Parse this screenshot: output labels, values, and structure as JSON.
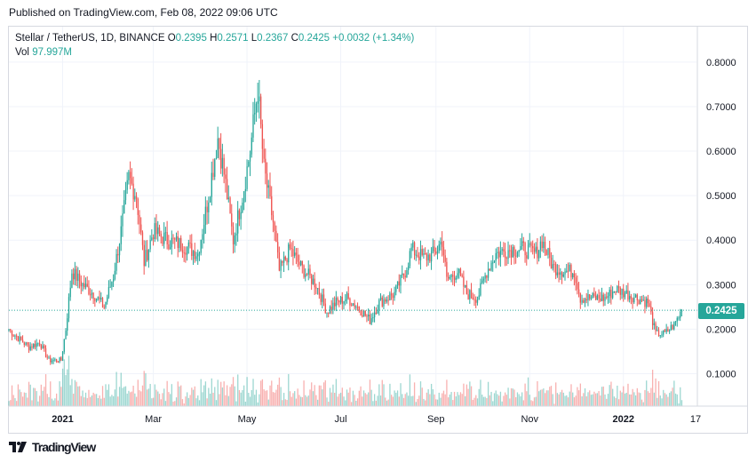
{
  "header": {
    "published": "Published on TradingView.com, Feb 08, 2022 09:06 UTC"
  },
  "legend": {
    "symbol": "Stellar / TetherUS, 1D, BINANCE",
    "o_label": "O",
    "o_value": "0.2395",
    "h_label": "H",
    "h_value": "0.2571",
    "l_label": "L",
    "l_value": "0.2367",
    "c_label": "C",
    "c_value": "0.2425",
    "change": "+0.0032 (+1.34%)",
    "vol_label": "Vol",
    "vol_value": "97.997M"
  },
  "last_price_tag": "0.2425",
  "footer": {
    "brand": "TradingView"
  },
  "colors": {
    "up": "#26a69a",
    "down": "#ef5350",
    "grid": "#f0f3fa",
    "axis_border": "#d6d9e0"
  },
  "chart_data": {
    "type": "candlestick",
    "title": "Stellar / TetherUS, 1D, BINANCE",
    "x_tick_labels": [
      "2021",
      "Mar",
      "May",
      "Jul",
      "Sep",
      "Nov",
      "2022",
      "17"
    ],
    "y_tick_labels": [
      "0.1000",
      "0.2000",
      "0.3000",
      "0.4000",
      "0.5000",
      "0.6000",
      "0.7000",
      "0.8000"
    ],
    "y_ticks": [
      0.1,
      0.2,
      0.3,
      0.4,
      0.5,
      0.6,
      0.7,
      0.8
    ],
    "ylim": [
      0.0,
      0.8
    ],
    "x_range": [
      "2020-11-27",
      "2022-02-17"
    ],
    "last_close": 0.2425,
    "grid": true,
    "close_path": [
      [
        "2020-11-27",
        0.2
      ],
      [
        "2020-12-03",
        0.18
      ],
      [
        "2020-12-10",
        0.16
      ],
      [
        "2020-12-17",
        0.17
      ],
      [
        "2020-12-23",
        0.13
      ],
      [
        "2020-12-31",
        0.13
      ],
      [
        "2021-01-03",
        0.2
      ],
      [
        "2021-01-07",
        0.33
      ],
      [
        "2021-01-14",
        0.3
      ],
      [
        "2021-01-21",
        0.28
      ],
      [
        "2021-01-28",
        0.25
      ],
      [
        "2021-02-03",
        0.32
      ],
      [
        "2021-02-08",
        0.42
      ],
      [
        "2021-02-13",
        0.54
      ],
      [
        "2021-02-18",
        0.5
      ],
      [
        "2021-02-23",
        0.35
      ],
      [
        "2021-03-01",
        0.42
      ],
      [
        "2021-03-10",
        0.4
      ],
      [
        "2021-03-20",
        0.39
      ],
      [
        "2021-03-30",
        0.37
      ],
      [
        "2021-04-05",
        0.48
      ],
      [
        "2021-04-12",
        0.63
      ],
      [
        "2021-04-16",
        0.55
      ],
      [
        "2021-04-22",
        0.4
      ],
      [
        "2021-04-28",
        0.5
      ],
      [
        "2021-05-03",
        0.6
      ],
      [
        "2021-05-08",
        0.74
      ],
      [
        "2021-05-12",
        0.56
      ],
      [
        "2021-05-18",
        0.44
      ],
      [
        "2021-05-22",
        0.33
      ],
      [
        "2021-05-29",
        0.38
      ],
      [
        "2021-06-05",
        0.34
      ],
      [
        "2021-06-15",
        0.3
      ],
      [
        "2021-06-22",
        0.24
      ],
      [
        "2021-06-28",
        0.26
      ],
      [
        "2021-07-05",
        0.27
      ],
      [
        "2021-07-12",
        0.25
      ],
      [
        "2021-07-20",
        0.22
      ],
      [
        "2021-07-26",
        0.26
      ],
      [
        "2021-08-05",
        0.28
      ],
      [
        "2021-08-12",
        0.33
      ],
      [
        "2021-08-16",
        0.38
      ],
      [
        "2021-08-24",
        0.36
      ],
      [
        "2021-08-31",
        0.37
      ],
      [
        "2021-09-05",
        0.4
      ],
      [
        "2021-09-08",
        0.31
      ],
      [
        "2021-09-15",
        0.33
      ],
      [
        "2021-09-21",
        0.28
      ],
      [
        "2021-09-28",
        0.27
      ],
      [
        "2021-10-04",
        0.33
      ],
      [
        "2021-10-10",
        0.37
      ],
      [
        "2021-10-20",
        0.38
      ],
      [
        "2021-10-28",
        0.38
      ],
      [
        "2021-11-05",
        0.37
      ],
      [
        "2021-11-09",
        0.4
      ],
      [
        "2021-11-16",
        0.34
      ],
      [
        "2021-11-24",
        0.33
      ],
      [
        "2021-11-30",
        0.33
      ],
      [
        "2021-12-04",
        0.27
      ],
      [
        "2021-12-10",
        0.27
      ],
      [
        "2021-12-20",
        0.27
      ],
      [
        "2021-12-27",
        0.29
      ],
      [
        "2022-01-03",
        0.28
      ],
      [
        "2022-01-10",
        0.27
      ],
      [
        "2022-01-17",
        0.26
      ],
      [
        "2022-01-22",
        0.19
      ],
      [
        "2022-01-28",
        0.19
      ],
      [
        "2022-02-03",
        0.21
      ],
      [
        "2022-02-08",
        0.2425
      ]
    ]
  }
}
